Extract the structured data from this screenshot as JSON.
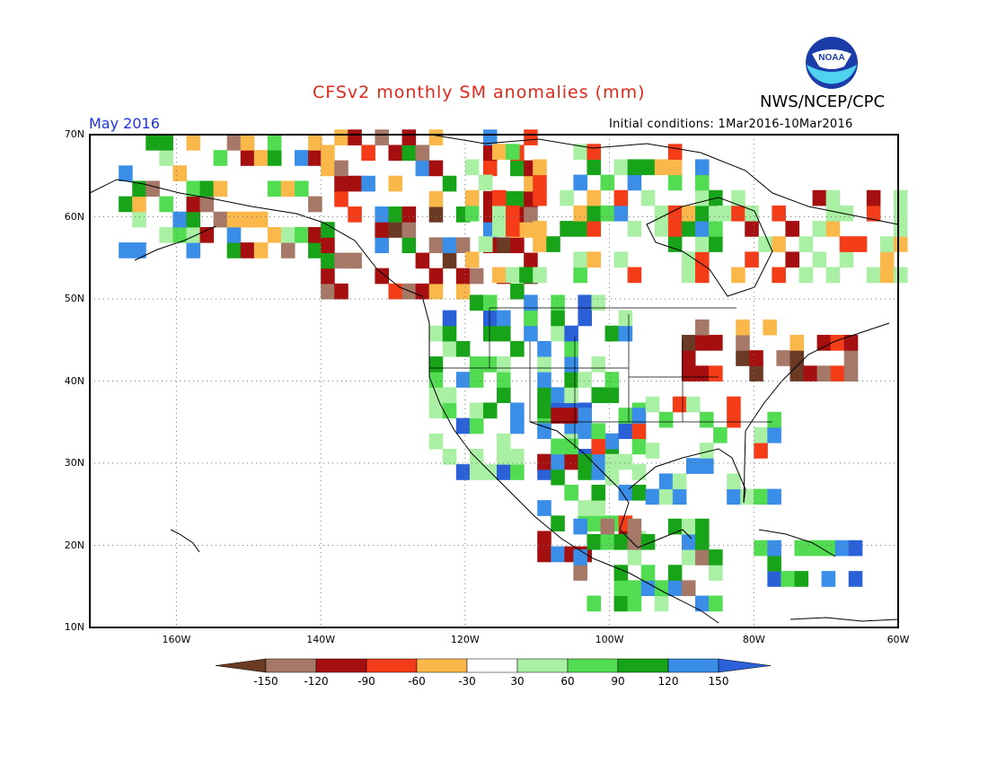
{
  "title": "CFSv2 monthly SM anomalies (mm)",
  "organization": "NWS/NCEP/CPC",
  "logo_text": "NOAA",
  "period": "May 2016",
  "initial_conditions": "Initial conditions: 1Mar2016-10Mar2016",
  "lat_labels": [
    "70N",
    "60N",
    "50N",
    "40N",
    "30N",
    "20N",
    "10N"
  ],
  "lon_labels": [
    "160W",
    "140W",
    "120W",
    "100W",
    "80W",
    "60W"
  ],
  "colorbar": {
    "labels": [
      "-150",
      "-120",
      "-90",
      "-60",
      "-30",
      "30",
      "60",
      "90",
      "120",
      "150"
    ],
    "colors": [
      "#6b3a24",
      "#a57868",
      "#a50f0f",
      "#f43c18",
      "#fbb84a",
      "#ffffff",
      "#a9f0a4",
      "#52dc52",
      "#18a418",
      "#3a8ee8",
      "#2a60d8"
    ]
  },
  "map": {
    "lon_range": [
      -172,
      -60
    ],
    "lat_range": [
      10,
      70
    ],
    "ocean_color": "#ffffff",
    "gridlines": "dotted"
  }
}
